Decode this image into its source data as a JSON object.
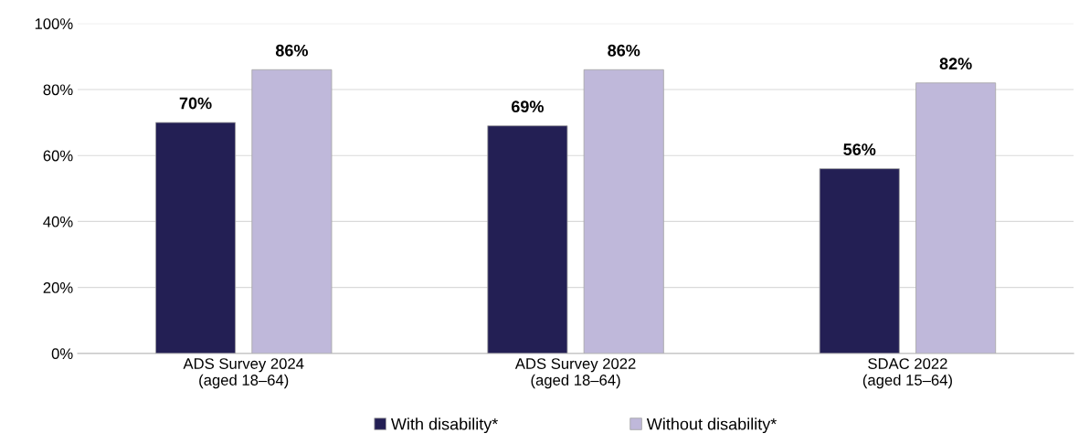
{
  "chart_data": {
    "type": "bar",
    "categories": [
      "ADS Survey 2024\n(aged 18–64)",
      "ADS Survey 2022\n(aged 18–64)",
      "SDAC 2022\n(aged 15–64)"
    ],
    "series": [
      {
        "name": "With disability*",
        "color": "#231f54",
        "values": [
          70,
          69,
          56
        ],
        "value_labels": [
          "70%",
          "69%",
          "56%"
        ]
      },
      {
        "name": "Without disability*",
        "color": "#bfb8da",
        "values": [
          86,
          86,
          82
        ],
        "value_labels": [
          "86%",
          "86%",
          "82%"
        ]
      }
    ],
    "ylim": [
      0,
      100
    ],
    "yticks": [
      {
        "value": 0,
        "label": "0%"
      },
      {
        "value": 20,
        "label": "20%"
      },
      {
        "value": 40,
        "label": "40%"
      },
      {
        "value": 60,
        "label": "60%"
      },
      {
        "value": 80,
        "label": "80%"
      },
      {
        "value": 100,
        "label": "100%"
      }
    ],
    "grid": "y",
    "legend": "bottom"
  }
}
